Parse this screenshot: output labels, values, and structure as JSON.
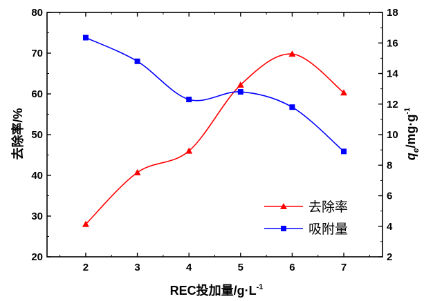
{
  "chart_data": {
    "type": "line",
    "title": "",
    "xlabel": "REC投加量/g·L",
    "xlabel_sup": "-1",
    "ylabel_left": "去除率/%",
    "ylabel_right_q": "q",
    "ylabel_right_sub": "e",
    "ylabel_right_rest": "/mg·g",
    "ylabel_right_sup": "-1",
    "x": [
      2,
      3,
      4,
      5,
      6,
      7
    ],
    "xlim": [
      1.25,
      7.75
    ],
    "xticks": [
      "2",
      "3",
      "4",
      "5",
      "6",
      "7"
    ],
    "ylim_left": [
      20,
      80
    ],
    "yticks_left": [
      "20",
      "30",
      "40",
      "50",
      "60",
      "70",
      "80"
    ],
    "ylim_right": [
      2,
      18
    ],
    "yticks_right": [
      "2",
      "4",
      "6",
      "8",
      "10",
      "12",
      "14",
      "16",
      "18"
    ],
    "series": [
      {
        "name": "去除率",
        "axis": "left",
        "color": "#ff0000",
        "marker": "triangle",
        "values": [
          28.0,
          40.7,
          46.0,
          62.2,
          69.8,
          60.3
        ]
      },
      {
        "name": "吸附量",
        "axis": "right",
        "color": "#0000ff",
        "marker": "square",
        "values": [
          16.35,
          14.8,
          12.3,
          12.8,
          11.8,
          8.9
        ]
      }
    ],
    "legend": "bottom-right",
    "grid": false
  }
}
